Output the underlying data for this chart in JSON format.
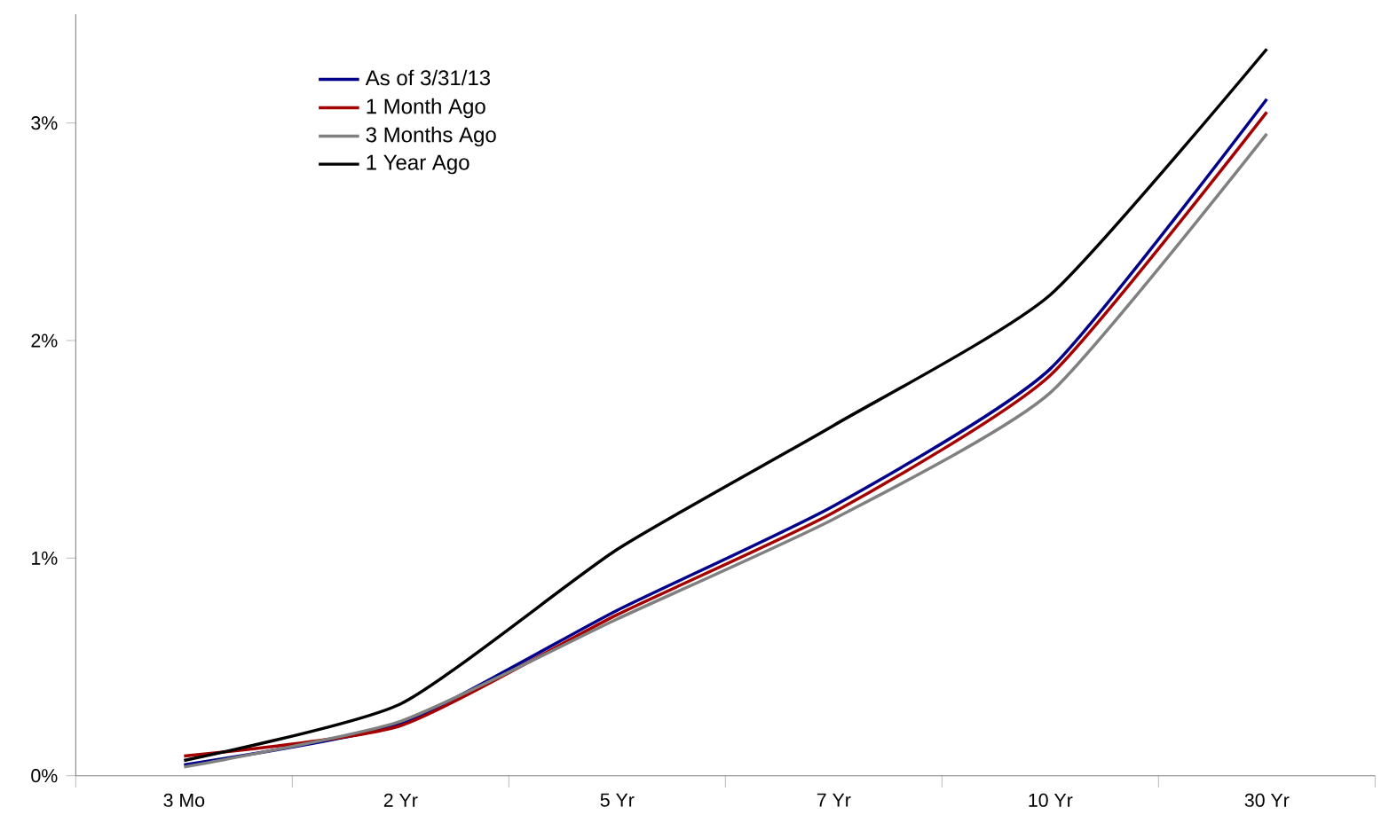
{
  "chart_data": {
    "type": "line",
    "categories": [
      "3 Mo",
      "2 Yr",
      "5 Yr",
      "7 Yr",
      "10 Yr",
      "30 Yr"
    ],
    "series": [
      {
        "name": "As of 3/31/13",
        "color": "#00008b",
        "values": [
          0.05,
          0.24,
          0.76,
          1.24,
          1.87,
          3.11
        ]
      },
      {
        "name": "1 Month Ago",
        "color": "#a50000",
        "values": [
          0.09,
          0.23,
          0.74,
          1.21,
          1.84,
          3.05
        ]
      },
      {
        "name": "3 Months Ago",
        "color": "#808080",
        "values": [
          0.04,
          0.25,
          0.72,
          1.18,
          1.76,
          2.95
        ]
      },
      {
        "name": "1 Year Ago",
        "color": "#000000",
        "values": [
          0.07,
          0.33,
          1.04,
          1.61,
          2.21,
          3.34
        ]
      }
    ],
    "ylim": [
      0,
      3.5
    ],
    "yticks": [
      {
        "value": 0,
        "label": "0%"
      },
      {
        "value": 1,
        "label": "1%"
      },
      {
        "value": 2,
        "label": "2%"
      },
      {
        "value": 3,
        "label": "3%"
      }
    ],
    "grid": false,
    "legend": "top left",
    "marker": "none",
    "line_style": "solid"
  }
}
